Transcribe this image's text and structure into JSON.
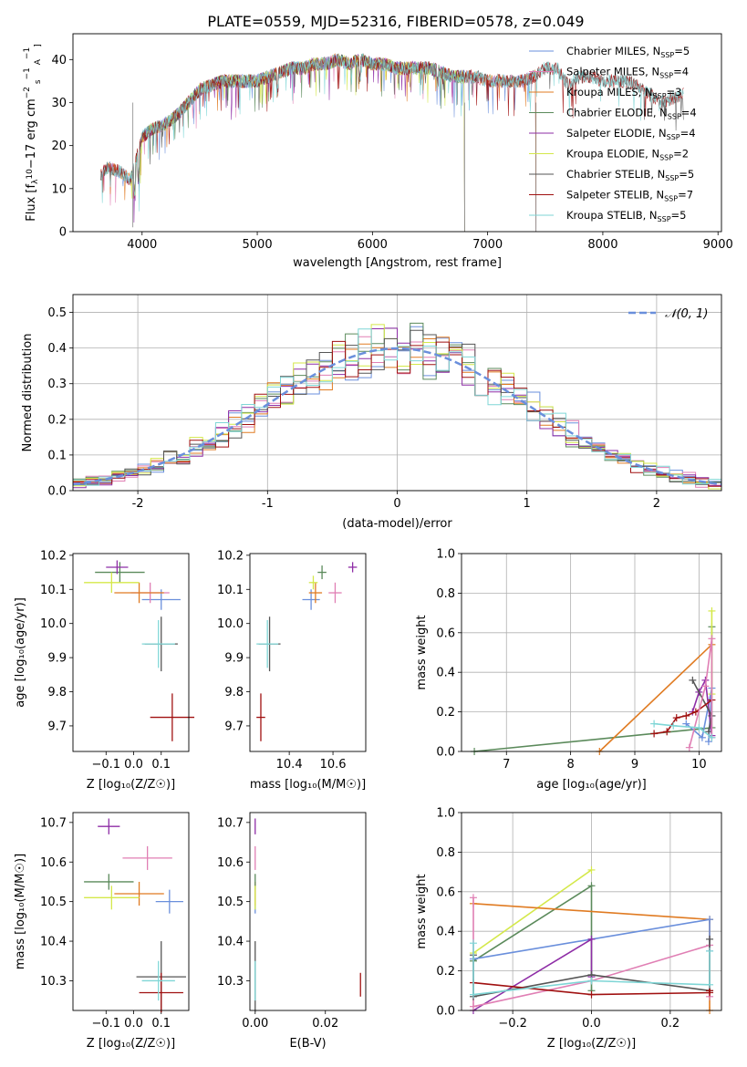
{
  "figure_title": "PLATE=0559, MJD=52316, FIBERID=0578, z=0.049",
  "chart_data": [
    {
      "type": "line",
      "id": "spectrum",
      "xlabel": "wavelength [Angstrom, rest frame]",
      "ylabel_parts": [
        "Flux [f",
        "λ",
        "10",
        "−17",
        " erg cm",
        "−2",
        " s",
        "−1",
        " A",
        "−1",
        "]"
      ],
      "xlim": [
        3400,
        9030
      ],
      "ylim": [
        0,
        46
      ],
      "xticks": [
        4000,
        5000,
        6000,
        7000,
        8000,
        9000
      ],
      "yticks": [
        0,
        10,
        20,
        30,
        40
      ],
      "grid": false,
      "legend_placement": "top-right",
      "note": "overlapping model spectra, all nearly identical; flux traced from the continuum",
      "series": [
        {
          "name": "Chabrier MILES",
          "nssp": "5",
          "color": "#6a8fdc",
          "x_range": [
            3640,
            7420
          ]
        },
        {
          "name": "Salpeter MILES",
          "nssp": "4",
          "color": "#e07fb4",
          "x_range": [
            3640,
            7420
          ]
        },
        {
          "name": "Kroupa MILES",
          "nssp": "3",
          "color": "#e07b22",
          "x_range": [
            3640,
            7420
          ]
        },
        {
          "name": "Chabrier ELODIE",
          "nssp": "4",
          "color": "#5b8a5b",
          "x_range": [
            3900,
            6800
          ]
        },
        {
          "name": "Salpeter ELODIE",
          "nssp": "4",
          "color": "#8e2da6",
          "x_range": [
            3900,
            6800
          ]
        },
        {
          "name": "Kroupa ELODIE",
          "nssp": "2",
          "color": "#d4e84a",
          "x_range": [
            3900,
            6800
          ]
        },
        {
          "name": "Chabrier STELIB",
          "nssp": "5",
          "color": "#555555",
          "x_range": [
            3640,
            8700
          ]
        },
        {
          "name": "Salpeter STELIB",
          "nssp": "7",
          "color": "#a01010",
          "x_range": [
            3640,
            8700
          ]
        },
        {
          "name": "Kroupa STELIB",
          "nssp": "5",
          "color": "#7fd6d6",
          "x_range": [
            3640,
            8700
          ]
        }
      ],
      "continuum": [
        [
          3640,
          13
        ],
        [
          3700,
          15
        ],
        [
          3800,
          14
        ],
        [
          3900,
          12
        ],
        [
          4000,
          22
        ],
        [
          4100,
          24
        ],
        [
          4200,
          25
        ],
        [
          4300,
          27
        ],
        [
          4400,
          30
        ],
        [
          4500,
          33
        ],
        [
          4600,
          34
        ],
        [
          4700,
          35
        ],
        [
          4800,
          35
        ],
        [
          4900,
          35
        ],
        [
          5000,
          35
        ],
        [
          5100,
          36
        ],
        [
          5200,
          37
        ],
        [
          5300,
          38
        ],
        [
          5400,
          38
        ],
        [
          5500,
          39
        ],
        [
          5600,
          39
        ],
        [
          5700,
          40
        ],
        [
          5800,
          39
        ],
        [
          5900,
          40
        ],
        [
          6000,
          39
        ],
        [
          6100,
          39
        ],
        [
          6200,
          38
        ],
        [
          6300,
          38
        ],
        [
          6400,
          38
        ],
        [
          6500,
          38
        ],
        [
          6600,
          37
        ],
        [
          6700,
          36
        ],
        [
          6800,
          36
        ],
        [
          6900,
          36
        ],
        [
          7000,
          35
        ],
        [
          7100,
          35
        ],
        [
          7200,
          35
        ],
        [
          7300,
          35
        ],
        [
          7400,
          36
        ],
        [
          7500,
          38
        ],
        [
          7600,
          38
        ],
        [
          7700,
          34
        ],
        [
          7800,
          36
        ],
        [
          7900,
          36
        ],
        [
          8000,
          35
        ],
        [
          8100,
          35
        ],
        [
          8200,
          35
        ],
        [
          8300,
          34
        ],
        [
          8400,
          32
        ],
        [
          8500,
          30
        ],
        [
          8600,
          31
        ],
        [
          8700,
          32
        ]
      ],
      "drops": [
        [
          3920,
          1
        ],
        [
          6800,
          0
        ],
        [
          7420,
          0
        ]
      ]
    },
    {
      "type": "line",
      "id": "residual-hist",
      "xlabel": "(data-model)/error",
      "ylabel": "Normed distribution",
      "xlim": [
        -2.5,
        2.5
      ],
      "ylim": [
        0,
        0.55
      ],
      "xticks": [
        -2,
        -1,
        0,
        1,
        2
      ],
      "yticks": [
        0.0,
        0.1,
        0.2,
        0.3,
        0.4,
        0.5
      ],
      "grid": true,
      "legend_placement": "top-right",
      "legend_label": "𝒩(0, 1)",
      "normal_curve_color": "#6a8fdc",
      "bin_width": 0.1
    },
    {
      "type": "scatter",
      "id": "age-vs-Z",
      "xlabel": "Z [log₁₀(Z/Z☉)]",
      "ylabel": "age  [log₁₀(age/yr)]",
      "xlim": [
        -0.22,
        0.2
      ],
      "ylim": [
        9.625,
        10.205
      ],
      "xticks": [
        -0.1,
        0.0,
        0.1
      ],
      "xticklabels": [
        "−0.1",
        "0.0",
        "0.1"
      ],
      "yticks": [
        9.7,
        9.8,
        9.9,
        10.0,
        10.1,
        10.2
      ],
      "points": [
        {
          "color": "#6a8fdc",
          "x": 0.1,
          "y": 10.07,
          "xerr": 0.07,
          "yerr": 0.03
        },
        {
          "color": "#e07fb4",
          "x": 0.06,
          "y": 10.09,
          "xerr": 0.07,
          "yerr": 0.03
        },
        {
          "color": "#e07b22",
          "x": 0.02,
          "y": 10.09,
          "xerr": 0.09,
          "yerr": 0.03
        },
        {
          "color": "#5b8a5b",
          "x": -0.05,
          "y": 10.15,
          "xerr": 0.09,
          "yerr": 0.03
        },
        {
          "color": "#8e2da6",
          "x": -0.06,
          "y": 10.165,
          "xerr": 0.04,
          "yerr": 0.02
        },
        {
          "color": "#d4e84a",
          "x": -0.08,
          "y": 10.12,
          "xerr": 0.1,
          "yerr": 0.03
        },
        {
          "color": "#555555",
          "x": 0.1,
          "y": 9.94,
          "xerr": 0.06,
          "yerr": 0.08
        },
        {
          "color": "#a01010",
          "x": 0.14,
          "y": 9.725,
          "xerr": 0.08,
          "yerr": 0.07
        },
        {
          "color": "#7fd6d6",
          "x": 0.09,
          "y": 9.94,
          "xerr": 0.06,
          "yerr": 0.07
        }
      ]
    },
    {
      "type": "scatter",
      "id": "age-vs-mass",
      "xlabel": "mass [log₁₀(M/M☉)]",
      "ylabel": "",
      "xlim": [
        10.22,
        10.75
      ],
      "ylim": [
        9.625,
        10.205
      ],
      "xticks": [
        10.4,
        10.6
      ],
      "yticks": [
        9.7,
        9.8,
        9.9,
        10.0,
        10.1,
        10.2
      ],
      "points": [
        {
          "color": "#6a8fdc",
          "x": 10.5,
          "y": 10.07,
          "xerr": 0.04,
          "yerr": 0.03
        },
        {
          "color": "#e07fb4",
          "x": 10.61,
          "y": 10.09,
          "xerr": 0.03,
          "yerr": 0.03
        },
        {
          "color": "#e07b22",
          "x": 10.52,
          "y": 10.09,
          "xerr": 0.03,
          "yerr": 0.03
        },
        {
          "color": "#5b8a5b",
          "x": 10.55,
          "y": 10.15,
          "xerr": 0.02,
          "yerr": 0.02
        },
        {
          "color": "#8e2da6",
          "x": 10.69,
          "y": 10.165,
          "xerr": 0.02,
          "yerr": 0.015
        },
        {
          "color": "#d4e84a",
          "x": 10.51,
          "y": 10.12,
          "xerr": 0.02,
          "yerr": 0.02
        },
        {
          "color": "#555555",
          "x": 10.31,
          "y": 9.94,
          "xerr": 0.05,
          "yerr": 0.08
        },
        {
          "color": "#a01010",
          "x": 10.27,
          "y": 9.725,
          "xerr": 0.02,
          "yerr": 0.07
        },
        {
          "color": "#7fd6d6",
          "x": 10.3,
          "y": 9.94,
          "xerr": 0.05,
          "yerr": 0.07
        }
      ]
    },
    {
      "type": "line",
      "id": "massweight-vs-age",
      "xlabel": "age  [log₁₀(age/yr)]",
      "ylabel": "mass weight",
      "xlim": [
        6.3,
        10.35
      ],
      "ylim": [
        0,
        1
      ],
      "xticks": [
        7,
        8,
        9,
        10
      ],
      "yticks": [
        0.0,
        0.2,
        0.4,
        0.6,
        0.8,
        1.0
      ],
      "grid": true,
      "series": [
        {
          "color": "#5b8a5b",
          "points": [
            [
              6.5,
              0
            ],
            [
              10.2,
              0.12
            ],
            [
              10.2,
              0.63
            ]
          ]
        },
        {
          "color": "#e07b22",
          "points": [
            [
              8.45,
              0
            ],
            [
              10.2,
              0.54
            ]
          ]
        },
        {
          "color": "#6a8fdc",
          "points": [
            [
              9.8,
              0.14
            ],
            [
              10.05,
              0.07
            ],
            [
              10.2,
              0.32
            ],
            [
              10.15,
              0.05
            ]
          ]
        },
        {
          "color": "#8e2da6",
          "points": [
            [
              9.9,
              0.2
            ],
            [
              10.0,
              0.3
            ],
            [
              10.1,
              0.36
            ],
            [
              10.2,
              0.08
            ]
          ]
        },
        {
          "color": "#d4e84a",
          "points": [
            [
              10.2,
              0.71
            ],
            [
              10.2,
              0.29
            ]
          ]
        },
        {
          "color": "#555555",
          "points": [
            [
              9.9,
              0.36
            ],
            [
              10.2,
              0.18
            ],
            [
              10.15,
              0.1
            ]
          ]
        },
        {
          "color": "#a01010",
          "points": [
            [
              9.3,
              0.09
            ],
            [
              9.5,
              0.1
            ],
            [
              9.65,
              0.17
            ],
            [
              9.8,
              0.18
            ],
            [
              9.95,
              0.2
            ],
            [
              10.2,
              0.26
            ]
          ]
        },
        {
          "color": "#e07fb4",
          "points": [
            [
              9.85,
              0.02
            ],
            [
              10.1,
              0.33
            ],
            [
              10.2,
              0.57
            ],
            [
              10.2,
              0.07
            ]
          ]
        },
        {
          "color": "#7fd6d6",
          "points": [
            [
              9.3,
              0.14
            ],
            [
              9.6,
              0.13
            ],
            [
              10.0,
              0.12
            ],
            [
              10.2,
              0.07
            ]
          ]
        }
      ]
    },
    {
      "type": "scatter",
      "id": "mass-vs-Z",
      "xlabel": "Z [log₁₀(Z/Z☉)]",
      "ylabel": "mass [log₁₀(M/M☉)]",
      "xlim": [
        -0.22,
        0.2
      ],
      "ylim": [
        10.225,
        10.725
      ],
      "xticks": [
        -0.1,
        0.0,
        0.1
      ],
      "xticklabels": [
        "−0.1",
        "0.0",
        "0.1"
      ],
      "yticks": [
        10.3,
        10.4,
        10.5,
        10.6,
        10.7
      ],
      "points": [
        {
          "color": "#6a8fdc",
          "x": 0.13,
          "y": 10.5,
          "xerr": 0.05,
          "yerr": 0.03
        },
        {
          "color": "#e07fb4",
          "x": 0.05,
          "y": 10.61,
          "xerr": 0.09,
          "yerr": 0.03
        },
        {
          "color": "#e07b22",
          "x": 0.02,
          "y": 10.52,
          "xerr": 0.09,
          "yerr": 0.03
        },
        {
          "color": "#5b8a5b",
          "x": -0.09,
          "y": 10.55,
          "xerr": 0.09,
          "yerr": 0.02
        },
        {
          "color": "#8e2da6",
          "x": -0.09,
          "y": 10.69,
          "xerr": 0.04,
          "yerr": 0.02
        },
        {
          "color": "#d4e84a",
          "x": -0.08,
          "y": 10.51,
          "xerr": 0.1,
          "yerr": 0.03
        },
        {
          "color": "#555555",
          "x": 0.1,
          "y": 10.31,
          "xerr": 0.09,
          "yerr": 0.09
        },
        {
          "color": "#a01010",
          "x": 0.1,
          "y": 10.27,
          "xerr": 0.08,
          "yerr": 0.05
        },
        {
          "color": "#7fd6d6",
          "x": 0.09,
          "y": 10.3,
          "xerr": 0.06,
          "yerr": 0.05
        }
      ]
    },
    {
      "type": "scatter",
      "id": "mass-vs-ebv",
      "xlabel": "E(B-V)",
      "ylabel": "",
      "xlim": [
        -0.0015,
        0.0315
      ],
      "ylim": [
        10.225,
        10.725
      ],
      "xticks": [
        0.0,
        0.02
      ],
      "xticklabels": [
        "0.00",
        "0.02"
      ],
      "yticks": [
        10.3,
        10.4,
        10.5,
        10.6,
        10.7
      ],
      "points": [
        {
          "color": "#6a8fdc",
          "x": 0.0,
          "y": 10.5,
          "xerr": 0.0,
          "yerr": 0.03
        },
        {
          "color": "#e07fb4",
          "x": 0.0,
          "y": 10.61,
          "xerr": 0.0,
          "yerr": 0.03
        },
        {
          "color": "#e07b22",
          "x": 0.0,
          "y": 10.52,
          "xerr": 0.0,
          "yerr": 0.03
        },
        {
          "color": "#5b8a5b",
          "x": 0.0,
          "y": 10.55,
          "xerr": 0.0,
          "yerr": 0.02
        },
        {
          "color": "#8e2da6",
          "x": 0.0,
          "y": 10.69,
          "xerr": 0.0,
          "yerr": 0.02
        },
        {
          "color": "#d4e84a",
          "x": 0.0,
          "y": 10.51,
          "xerr": 0.0,
          "yerr": 0.03
        },
        {
          "color": "#555555",
          "x": 0.0,
          "y": 10.31,
          "xerr": 0.0,
          "yerr": 0.09
        },
        {
          "color": "#a01010",
          "x": 0.03,
          "y": 10.29,
          "xerr": 0.0,
          "yerr": 0.03
        },
        {
          "color": "#7fd6d6",
          "x": 0.0,
          "y": 10.3,
          "xerr": 0.0,
          "yerr": 0.05
        }
      ]
    },
    {
      "type": "line",
      "id": "massweight-vs-Z",
      "xlabel": "Z [log₁₀(Z/Z☉)]",
      "ylabel": "mass weight",
      "xlim": [
        -0.33,
        0.33
      ],
      "ylim": [
        0,
        1
      ],
      "xticks": [
        -0.2,
        0.0,
        0.2
      ],
      "xticklabels": [
        "−0.2",
        "0.0",
        "0.2"
      ],
      "yticks": [
        0.0,
        0.2,
        0.4,
        0.6,
        0.8,
        1.0
      ],
      "grid": true,
      "series": [
        {
          "color": "#d4e84a",
          "points": [
            [
              -0.3,
              0.29
            ],
            [
              0.0,
              0.71
            ]
          ]
        },
        {
          "color": "#5b8a5b",
          "points": [
            [
              -0.3,
              0.25
            ],
            [
              0.0,
              0.63
            ],
            [
              0.0,
              0.1
            ]
          ]
        },
        {
          "color": "#e07b22",
          "points": [
            [
              -0.3,
              0.54
            ],
            [
              0.3,
              0.46
            ],
            [
              0.3,
              0.0
            ]
          ]
        },
        {
          "color": "#6a8fdc",
          "points": [
            [
              -0.3,
              0.26
            ],
            [
              0.0,
              0.36
            ],
            [
              0.3,
              0.46
            ],
            [
              0.3,
              0.3
            ]
          ]
        },
        {
          "color": "#8e2da6",
          "points": [
            [
              -0.3,
              0.0
            ],
            [
              0.0,
              0.36
            ],
            [
              0.0,
              0.17
            ]
          ]
        },
        {
          "color": "#e07fb4",
          "points": [
            [
              -0.3,
              0.57
            ],
            [
              -0.3,
              0.02
            ],
            [
              0.0,
              0.15
            ],
            [
              0.3,
              0.33
            ],
            [
              0.3,
              0.07
            ]
          ]
        },
        {
          "color": "#555555",
          "points": [
            [
              -0.3,
              0.28
            ],
            [
              -0.3,
              0.07
            ],
            [
              0.0,
              0.18
            ],
            [
              0.3,
              0.1
            ],
            [
              0.3,
              0.36
            ]
          ]
        },
        {
          "color": "#a01010",
          "points": [
            [
              -0.3,
              0.14
            ],
            [
              0.0,
              0.08
            ],
            [
              0.3,
              0.09
            ],
            [
              0.3,
              0.1
            ]
          ]
        },
        {
          "color": "#7fd6d6",
          "points": [
            [
              -0.3,
              0.34
            ],
            [
              -0.3,
              0.08
            ],
            [
              0.0,
              0.15
            ],
            [
              0.3,
              0.13
            ],
            [
              0.3,
              0.3
            ]
          ]
        }
      ]
    }
  ]
}
